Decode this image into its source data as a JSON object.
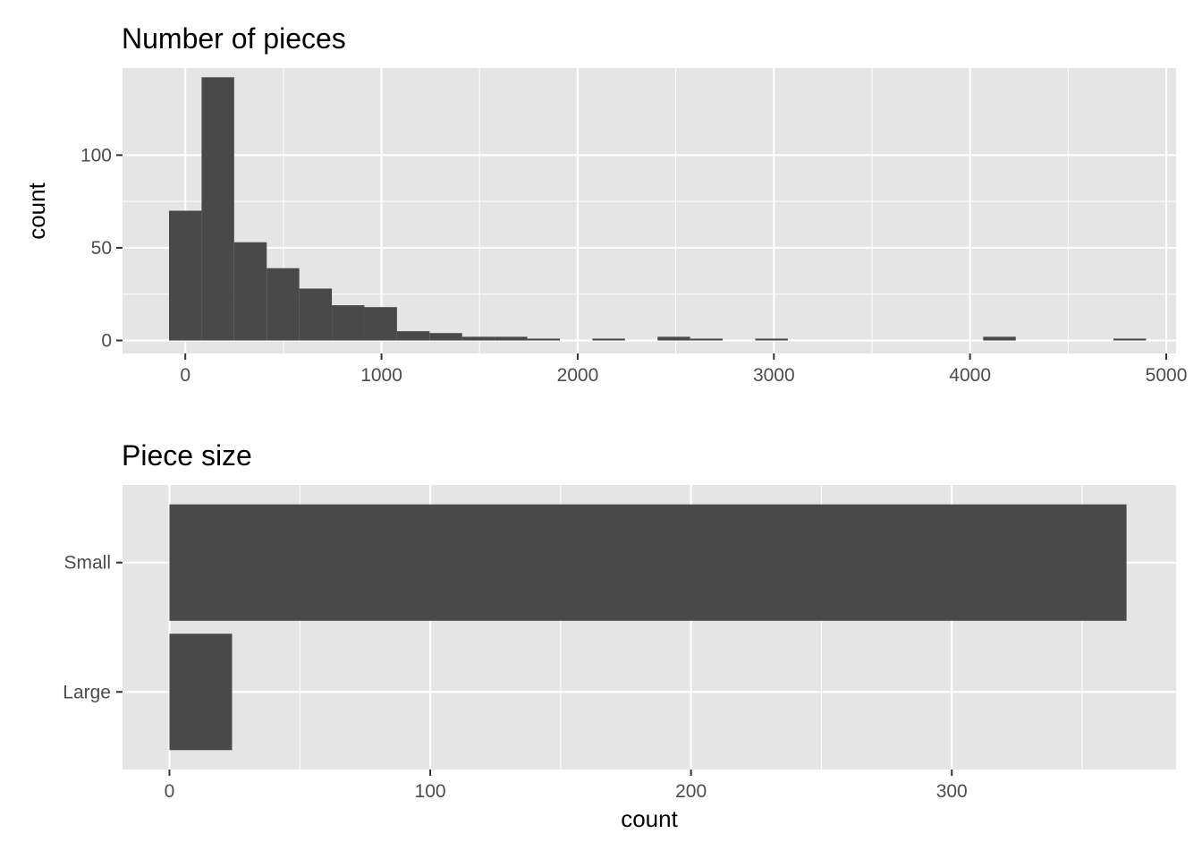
{
  "chart_data": [
    {
      "type": "bar",
      "title": "Number of pieces",
      "xlabel": "",
      "ylabel": "count",
      "xlim": [
        -320,
        5050
      ],
      "ylim": [
        -7,
        147
      ],
      "x_ticks": [
        0,
        1000,
        2000,
        3000,
        4000,
        5000
      ],
      "x_tick_labels": [
        "0",
        "1000",
        "2000",
        "3000",
        "4000",
        "5000"
      ],
      "y_ticks": [
        0,
        50,
        100
      ],
      "y_tick_labels": [
        "0",
        "50",
        "100"
      ],
      "grid": true,
      "bins": [
        {
          "x0": -83,
          "x1": 83,
          "count": 70
        },
        {
          "x0": 83,
          "x1": 249,
          "count": 142
        },
        {
          "x0": 249,
          "x1": 415,
          "count": 53
        },
        {
          "x0": 415,
          "x1": 581,
          "count": 39
        },
        {
          "x0": 581,
          "x1": 747,
          "count": 28
        },
        {
          "x0": 747,
          "x1": 913,
          "count": 19
        },
        {
          "x0": 913,
          "x1": 1079,
          "count": 18
        },
        {
          "x0": 1079,
          "x1": 1245,
          "count": 5
        },
        {
          "x0": 1245,
          "x1": 1411,
          "count": 4
        },
        {
          "x0": 1411,
          "x1": 1577,
          "count": 2
        },
        {
          "x0": 1577,
          "x1": 1743,
          "count": 2
        },
        {
          "x0": 1743,
          "x1": 1909,
          "count": 1
        },
        {
          "x0": 2075,
          "x1": 2241,
          "count": 1
        },
        {
          "x0": 2407,
          "x1": 2573,
          "count": 2
        },
        {
          "x0": 2573,
          "x1": 2739,
          "count": 1
        },
        {
          "x0": 2905,
          "x1": 3071,
          "count": 1
        },
        {
          "x0": 4067,
          "x1": 4233,
          "count": 2
        },
        {
          "x0": 4731,
          "x1": 4897,
          "count": 1
        }
      ]
    },
    {
      "type": "bar",
      "orientation": "horizontal",
      "title": "Piece size",
      "xlabel": "count",
      "ylabel": "",
      "categories": [
        "Small",
        "Large"
      ],
      "values": [
        367,
        24
      ],
      "xlim": [
        -18,
        386
      ],
      "x_ticks": [
        0,
        100,
        200,
        300
      ],
      "x_tick_labels": [
        "0",
        "100",
        "200",
        "300"
      ],
      "grid": true
    }
  ],
  "colors": {
    "panel": "#e5e5e5",
    "grid_major": "#ffffff",
    "bar": "#494949",
    "tick": "#333333"
  }
}
